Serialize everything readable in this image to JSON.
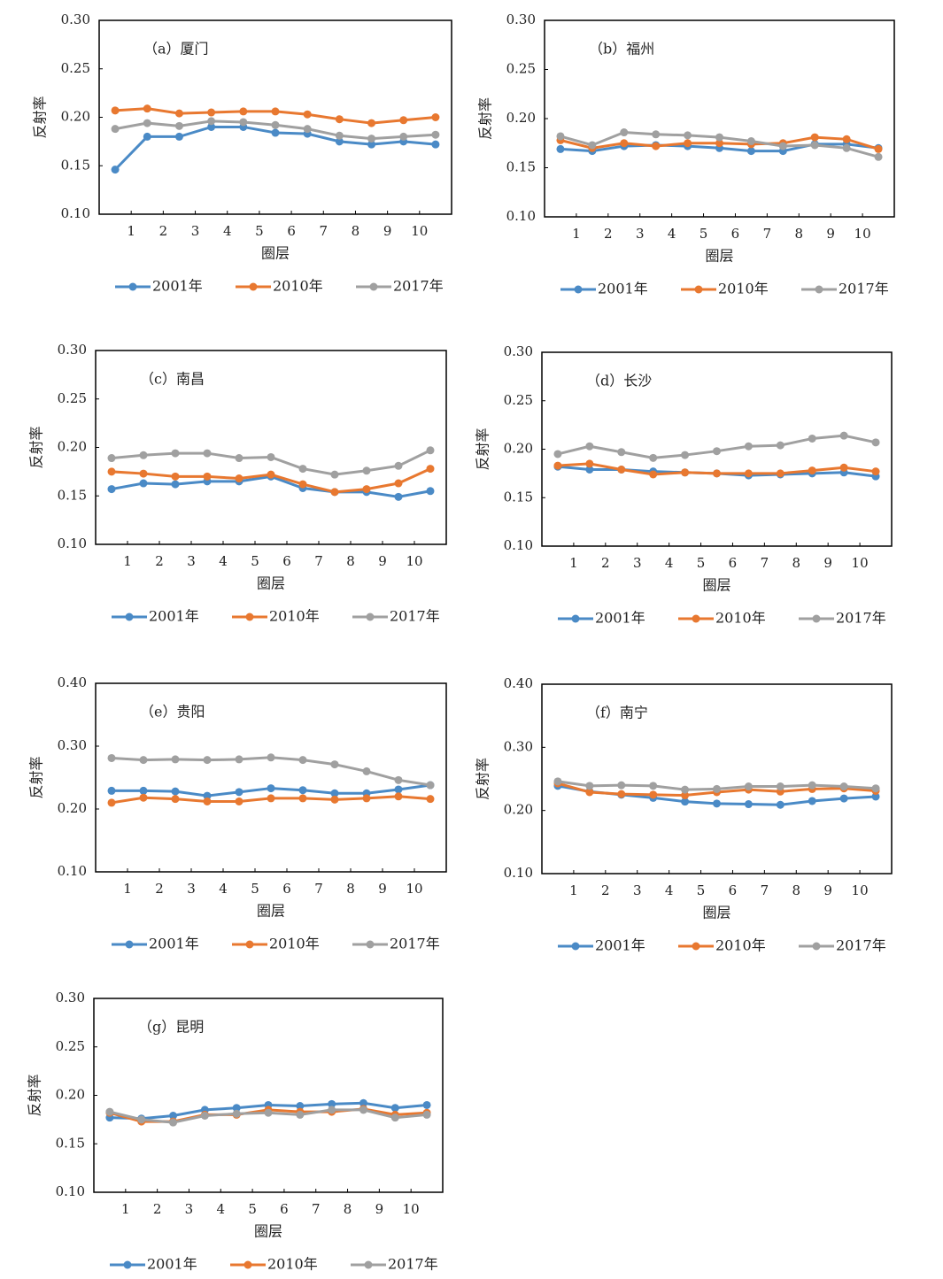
{
  "chart_data": [
    {
      "type": "line",
      "title": "（a）厦门",
      "xlabel": "圈层",
      "ylabel": "反射率",
      "x": [
        0.5,
        1.5,
        2.5,
        3.5,
        4.5,
        5.5,
        6.5,
        7.5,
        8.5,
        9.5,
        10.5
      ],
      "xlim": [
        0,
        11
      ],
      "xticks": [
        1,
        2,
        3,
        4,
        5,
        6,
        7,
        8,
        9,
        10
      ],
      "ylim": [
        0.1,
        0.3
      ],
      "yticks": [
        {
          "value": 0.1,
          "label": "0.10"
        },
        0.15,
        {
          "value": 0.2,
          "label": "0.20"
        },
        0.25,
        {
          "value": 0.3,
          "label": "0.30"
        }
      ],
      "series": [
        {
          "name": "2001年",
          "color": "#4a8ac6",
          "values": [
            0.146,
            0.18,
            0.18,
            0.19,
            0.19,
            0.184,
            0.183,
            0.175,
            0.172,
            0.175,
            0.172
          ]
        },
        {
          "name": "2010年",
          "color": "#e87830",
          "values": [
            0.207,
            0.209,
            0.204,
            0.205,
            0.206,
            0.206,
            0.203,
            0.198,
            0.194,
            0.197,
            0.2
          ]
        },
        {
          "name": "2017年",
          "color": "#a0a0a0",
          "values": [
            0.188,
            0.194,
            0.191,
            0.196,
            0.195,
            0.192,
            0.188,
            0.181,
            0.178,
            0.18,
            0.182
          ]
        }
      ]
    },
    {
      "type": "line",
      "title": "（b）福州",
      "xlabel": "圈层",
      "ylabel": "反射率",
      "x": [
        0.5,
        1.5,
        2.5,
        3.5,
        4.5,
        5.5,
        6.5,
        7.5,
        8.5,
        9.5,
        10.5
      ],
      "xlim": [
        0,
        11
      ],
      "xticks": [
        1,
        2,
        3,
        4,
        5,
        6,
        7,
        8,
        9,
        10
      ],
      "ylim": [
        0.1,
        0.3
      ],
      "yticks": [
        {
          "value": 0.1,
          "label": "0.10"
        },
        0.15,
        {
          "value": 0.2,
          "label": "0.20"
        },
        0.25,
        {
          "value": 0.3,
          "label": "0.30"
        }
      ],
      "series": [
        {
          "name": "2001年",
          "color": "#4a8ac6",
          "values": [
            0.169,
            0.167,
            0.172,
            0.173,
            0.172,
            0.17,
            0.167,
            0.167,
            0.174,
            0.174,
            0.17
          ]
        },
        {
          "name": "2010年",
          "color": "#e87830",
          "values": [
            0.178,
            0.17,
            0.175,
            0.172,
            0.175,
            0.175,
            0.174,
            0.175,
            0.181,
            0.179,
            0.169
          ]
        },
        {
          "name": "2017年",
          "color": "#a0a0a0",
          "values": [
            0.182,
            0.173,
            0.186,
            0.184,
            0.183,
            0.181,
            0.177,
            0.172,
            0.173,
            0.17,
            0.161
          ]
        }
      ]
    },
    {
      "type": "line",
      "title": "（c）南昌",
      "xlabel": "圈层",
      "ylabel": "反射率",
      "x": [
        0.5,
        1.5,
        2.5,
        3.5,
        4.5,
        5.5,
        6.5,
        7.5,
        8.5,
        9.5,
        10.5
      ],
      "xlim": [
        0,
        11
      ],
      "xticks": [
        1,
        2,
        3,
        4,
        5,
        6,
        7,
        8,
        9,
        10
      ],
      "ylim": [
        0.1,
        0.3
      ],
      "yticks": [
        {
          "value": 0.1,
          "label": "0.10"
        },
        0.15,
        {
          "value": 0.2,
          "label": "0.20"
        },
        0.25,
        {
          "value": 0.3,
          "label": "0.30"
        }
      ],
      "series": [
        {
          "name": "2001年",
          "color": "#4a8ac6",
          "values": [
            0.157,
            0.163,
            0.162,
            0.165,
            0.165,
            0.17,
            0.158,
            0.154,
            0.154,
            0.149,
            0.155
          ]
        },
        {
          "name": "2010年",
          "color": "#e87830",
          "values": [
            0.175,
            0.173,
            0.17,
            0.17,
            0.168,
            0.172,
            0.162,
            0.154,
            0.157,
            0.163,
            0.178
          ]
        },
        {
          "name": "2017年",
          "color": "#a0a0a0",
          "values": [
            0.189,
            0.192,
            0.194,
            0.194,
            0.189,
            0.19,
            0.178,
            0.172,
            0.176,
            0.181,
            0.197
          ]
        }
      ]
    },
    {
      "type": "line",
      "title": "（d）长沙",
      "xlabel": "圈层",
      "ylabel": "反射率",
      "x": [
        0.5,
        1.5,
        2.5,
        3.5,
        4.5,
        5.5,
        6.5,
        7.5,
        8.5,
        9.5,
        10.5
      ],
      "xlim": [
        0,
        11
      ],
      "xticks": [
        1,
        2,
        3,
        4,
        5,
        6,
        7,
        8,
        9,
        10
      ],
      "ylim": [
        0.1,
        0.3
      ],
      "yticks": [
        {
          "value": 0.1,
          "label": "0.10"
        },
        0.15,
        {
          "value": 0.2,
          "label": "0.20"
        },
        0.25,
        {
          "value": 0.3,
          "label": "0.30"
        }
      ],
      "series": [
        {
          "name": "2001年",
          "color": "#4a8ac6",
          "values": [
            0.182,
            0.179,
            0.179,
            0.177,
            0.176,
            0.175,
            0.173,
            0.174,
            0.175,
            0.176,
            0.172
          ]
        },
        {
          "name": "2010年",
          "color": "#e87830",
          "values": [
            0.183,
            0.185,
            0.179,
            0.174,
            0.176,
            0.175,
            0.175,
            0.175,
            0.178,
            0.181,
            0.177
          ]
        },
        {
          "name": "2017年",
          "color": "#a0a0a0",
          "values": [
            0.195,
            0.203,
            0.197,
            0.191,
            0.194,
            0.198,
            0.203,
            0.204,
            0.211,
            0.214,
            0.207
          ]
        }
      ]
    },
    {
      "type": "line",
      "title": "（e）贵阳",
      "xlabel": "圈层",
      "ylabel": "反射率",
      "x": [
        0.5,
        1.5,
        2.5,
        3.5,
        4.5,
        5.5,
        6.5,
        7.5,
        8.5,
        9.5,
        10.5
      ],
      "xlim": [
        0,
        11
      ],
      "xticks": [
        1,
        2,
        3,
        4,
        5,
        6,
        7,
        8,
        9,
        10
      ],
      "ylim": [
        0.1,
        0.4
      ],
      "yticks": [
        {
          "value": 0.1,
          "label": "0.10"
        },
        {
          "value": 0.2,
          "label": "0.20"
        },
        {
          "value": 0.3,
          "label": "0.30"
        },
        {
          "value": 0.4,
          "label": "0.40"
        }
      ],
      "series": [
        {
          "name": "2001年",
          "color": "#4a8ac6",
          "values": [
            0.229,
            0.229,
            0.228,
            0.221,
            0.227,
            0.233,
            0.23,
            0.225,
            0.225,
            0.231,
            0.238
          ]
        },
        {
          "name": "2010年",
          "color": "#e87830",
          "values": [
            0.21,
            0.218,
            0.216,
            0.212,
            0.212,
            0.217,
            0.217,
            0.215,
            0.217,
            0.22,
            0.216
          ]
        },
        {
          "name": "2017年",
          "color": "#a0a0a0",
          "values": [
            0.281,
            0.278,
            0.279,
            0.278,
            0.279,
            0.282,
            0.278,
            0.271,
            0.26,
            0.246,
            0.238
          ]
        }
      ]
    },
    {
      "type": "line",
      "title": "（f）南宁",
      "xlabel": "圈层",
      "ylabel": "反射率",
      "x": [
        0.5,
        1.5,
        2.5,
        3.5,
        4.5,
        5.5,
        6.5,
        7.5,
        8.5,
        9.5,
        10.5
      ],
      "xlim": [
        0,
        11
      ],
      "xticks": [
        1,
        2,
        3,
        4,
        5,
        6,
        7,
        8,
        9,
        10
      ],
      "ylim": [
        0.1,
        0.4
      ],
      "yticks": [
        {
          "value": 0.1,
          "label": "0.10"
        },
        {
          "value": 0.2,
          "label": "0.20"
        },
        {
          "value": 0.3,
          "label": "0.30"
        },
        {
          "value": 0.4,
          "label": "0.40"
        }
      ],
      "series": [
        {
          "name": "2001年",
          "color": "#4a8ac6",
          "values": [
            0.239,
            0.23,
            0.225,
            0.22,
            0.214,
            0.211,
            0.21,
            0.209,
            0.215,
            0.219,
            0.222
          ]
        },
        {
          "name": "2010年",
          "color": "#e87830",
          "values": [
            0.243,
            0.229,
            0.226,
            0.225,
            0.224,
            0.229,
            0.233,
            0.23,
            0.234,
            0.235,
            0.231
          ]
        },
        {
          "name": "2017年",
          "color": "#a0a0a0",
          "values": [
            0.246,
            0.239,
            0.24,
            0.239,
            0.233,
            0.234,
            0.238,
            0.238,
            0.24,
            0.238,
            0.235
          ]
        }
      ]
    },
    {
      "type": "line",
      "title": "（g）昆明",
      "xlabel": "圈层",
      "ylabel": "反射率",
      "x": [
        0.5,
        1.5,
        2.5,
        3.5,
        4.5,
        5.5,
        6.5,
        7.5,
        8.5,
        9.5,
        10.5
      ],
      "xlim": [
        0,
        11
      ],
      "xticks": [
        1,
        2,
        3,
        4,
        5,
        6,
        7,
        8,
        9,
        10
      ],
      "ylim": [
        0.1,
        0.3
      ],
      "yticks": [
        {
          "value": 0.1,
          "label": "0.10"
        },
        0.15,
        {
          "value": 0.2,
          "label": "0.20"
        },
        0.25,
        {
          "value": 0.3,
          "label": "0.30"
        }
      ],
      "series": [
        {
          "name": "2001年",
          "color": "#4a8ac6",
          "values": [
            0.177,
            0.176,
            0.179,
            0.185,
            0.187,
            0.19,
            0.189,
            0.191,
            0.192,
            0.187,
            0.19
          ]
        },
        {
          "name": "2010年",
          "color": "#e87830",
          "values": [
            0.182,
            0.173,
            0.173,
            0.18,
            0.18,
            0.185,
            0.183,
            0.183,
            0.186,
            0.18,
            0.182
          ]
        },
        {
          "name": "2017年",
          "color": "#a0a0a0",
          "values": [
            0.183,
            0.175,
            0.172,
            0.179,
            0.181,
            0.182,
            0.18,
            0.185,
            0.185,
            0.177,
            0.18
          ]
        }
      ]
    }
  ]
}
